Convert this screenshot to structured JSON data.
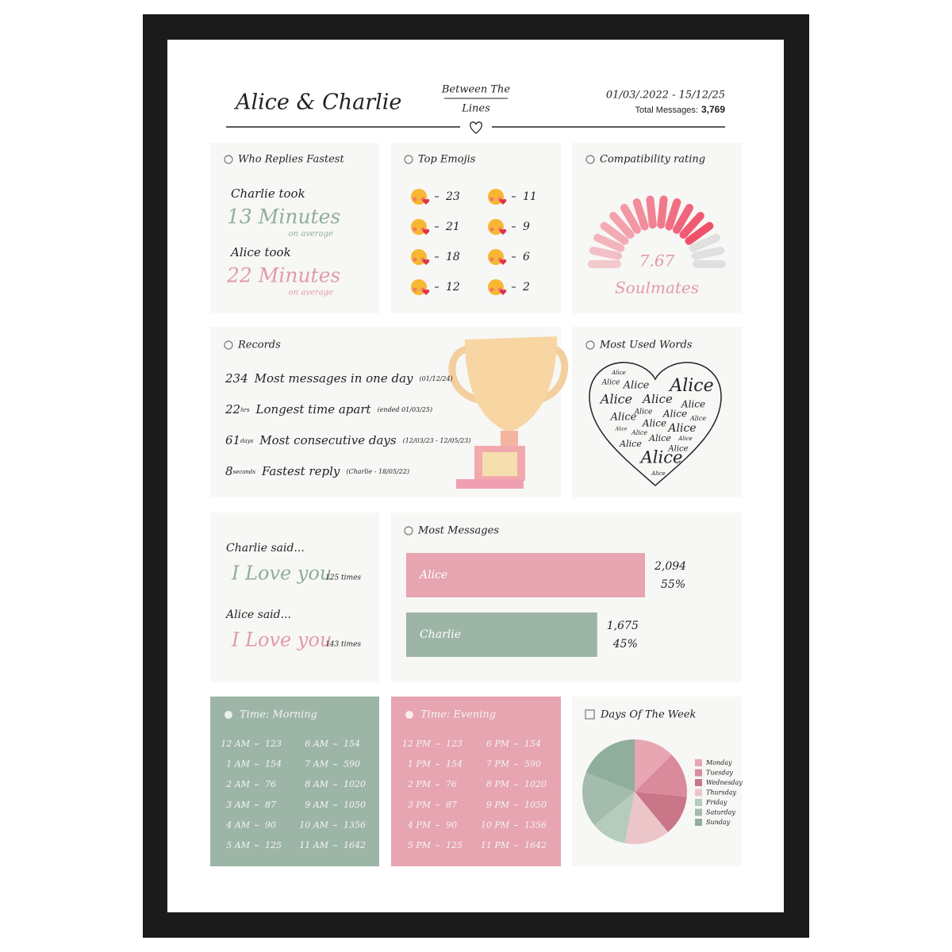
{
  "header": {
    "title": "Alice & Charlie",
    "brand": [
      "Between The",
      "Lines"
    ],
    "dates": "01/03/.2022 - 15/12/25",
    "total_label": "Total Messages:",
    "total": "3,769"
  },
  "replies": {
    "title": "Who Replies Fastest",
    "people": [
      {
        "label": "Charlie took",
        "time": "13 Minutes",
        "note": "on average"
      },
      {
        "label": "Alice took",
        "time": "22 Minutes",
        "note": "on average"
      }
    ]
  },
  "emojis": {
    "title": "Top Emojis",
    "counts": [
      23,
      21,
      18,
      12,
      11,
      9,
      6,
      2
    ]
  },
  "compatibility": {
    "title": "Compatibility rating",
    "score": 7.67,
    "verdict": "Soulmates"
  },
  "records": {
    "title": "Records",
    "items": [
      {
        "value": 234,
        "title": "Most messages in one day",
        "note": "(01/12/24)"
      },
      {
        "value": 22,
        "unit": "hrs",
        "title": "Longest time apart",
        "note": "(ended 01/03/25)"
      },
      {
        "value": 61,
        "unit": "days",
        "title": "Most consecutive days",
        "note": "(12/03/23 - 12/05/23)"
      },
      {
        "value": 8,
        "unit": "seconds",
        "title": "Fastest reply",
        "note": "(Charlie - 18/05/22)"
      }
    ]
  },
  "words": {
    "title": "Most Used Words",
    "cloud": [
      "Alice",
      "Alice",
      "Alice",
      "Alice",
      "Alice",
      "Alice",
      "Alice",
      "Alice",
      "Alice",
      "Alice",
      "Alice",
      "Alice",
      "Alice",
      "Alice",
      "Alice",
      "Alice",
      "Alice",
      "Alice",
      "Alice",
      "Alice",
      "Alice"
    ]
  },
  "said": [
    {
      "speaker": "Charlie said...",
      "phrase": "I Love you",
      "count": "125 times"
    },
    {
      "speaker": "Alice said...",
      "phrase": "I Love you",
      "count": "143 times"
    }
  ],
  "messages": {
    "title": "Most Messages",
    "bars": [
      {
        "name": "Alice",
        "color": "#e6a5b0",
        "value": 2094,
        "value_label": "2,094",
        "share": "55%"
      },
      {
        "name": "Charlie",
        "color": "#9db5a6",
        "value": 1675,
        "value_label": "1,675",
        "share": "45%"
      }
    ]
  },
  "morning": {
    "title": "Time: Morning",
    "color": "#9db5a6",
    "rows": [
      {
        "time": "12 AM",
        "count": 123
      },
      {
        "time": "1 AM",
        "count": 154
      },
      {
        "time": "2 AM",
        "count": 76
      },
      {
        "time": "3 AM",
        "count": 87
      },
      {
        "time": "4 AM",
        "count": 90
      },
      {
        "time": "5 AM",
        "count": 125
      },
      {
        "time": "6 AM",
        "count": 154
      },
      {
        "time": "7 AM",
        "count": 590
      },
      {
        "time": "8 AM",
        "count": 1020
      },
      {
        "time": "9 AM",
        "count": 1050
      },
      {
        "time": "10 AM",
        "count": 1356
      },
      {
        "time": "11 AM",
        "count": 1642
      }
    ]
  },
  "evening": {
    "title": "Time: Evening",
    "color": "#e6a5b0",
    "rows": [
      {
        "time": "12 PM",
        "count": 123
      },
      {
        "time": "1 PM",
        "count": 154
      },
      {
        "time": "2 PM",
        "count": 76
      },
      {
        "time": "3 PM",
        "count": 87
      },
      {
        "time": "4 PM",
        "count": 90
      },
      {
        "time": "5 PM",
        "count": 125
      },
      {
        "time": "6 PM",
        "count": 154
      },
      {
        "time": "7 PM",
        "count": 590
      },
      {
        "time": "8 PM",
        "count": 1020
      },
      {
        "time": "9 PM",
        "count": 1050
      },
      {
        "time": "10 PM",
        "count": 1356
      },
      {
        "time": "11 PM",
        "count": 1642
      }
    ]
  },
  "days": {
    "title": "Days Of The Week",
    "slices": [
      {
        "name": "Monday",
        "value": 12.5,
        "color": "#e8a6b3"
      },
      {
        "name": "Tuesday",
        "value": 14,
        "color": "#d98b9c"
      },
      {
        "name": "Wednesday",
        "value": 12.5,
        "color": "#c97688"
      },
      {
        "name": "Thursday",
        "value": 14,
        "color": "#ecc5c8"
      },
      {
        "name": "Friday",
        "value": 11,
        "color": "#b5ccbd"
      },
      {
        "name": "Saturday",
        "value": 17,
        "color": "#a3bcad"
      },
      {
        "name": "Sunday",
        "value": 19,
        "color": "#8fae9c"
      }
    ]
  }
}
